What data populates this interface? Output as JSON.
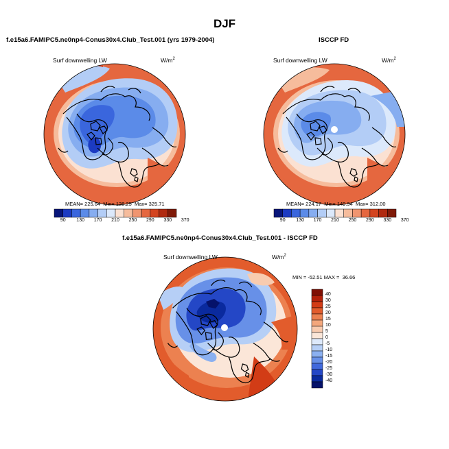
{
  "page": {
    "title": "DJF"
  },
  "panels": [
    {
      "title": "f.e15a6.FAMIPC5.ne0np4-Conus30x4.Club_Test.001 (yrs 1979-2004)",
      "field_label": "Surf downwelling LW",
      "units": "W/m",
      "units_exp": "2",
      "stats": {
        "mean_label": "MEAN=",
        "mean": "225.64",
        "min_label": "Min=",
        "min": "128.25",
        "max_label": "Max=",
        "max": "325.71"
      },
      "colorbar": {
        "ticks": [
          "90",
          "130",
          "170",
          "210",
          "250",
          "290",
          "330",
          "370"
        ]
      }
    },
    {
      "title": "ISCCP FD",
      "field_label": "Surf downwelling LW",
      "units": "W/m",
      "units_exp": "2",
      "stats": {
        "mean_label": "MEAN=",
        "mean": "224.17",
        "min_label": "Min=",
        "min": "149.94",
        "max_label": "Max=",
        "max": "312.00"
      },
      "colorbar": {
        "ticks": [
          "90",
          "130",
          "170",
          "210",
          "250",
          "290",
          "330",
          "370"
        ]
      }
    },
    {
      "title": "f.e15a6.FAMIPC5.ne0np4-Conus30x4.Club_Test.001 - ISCCP FD",
      "field_label": "Surf downwelling LW",
      "units": "W/m",
      "units_exp": "2",
      "stats": {
        "min_label": "MIN =",
        "min": "-52.51",
        "max_label": "MAX =",
        "max": "36.66"
      },
      "colorbar": {
        "ticks": [
          "40",
          "30",
          "25",
          "20",
          "15",
          "10",
          "5",
          "0",
          "-5",
          "-10",
          "-15",
          "-20",
          "-25",
          "-30",
          "-40"
        ]
      }
    }
  ],
  "palettes": {
    "field": [
      "#08167a",
      "#1c3bc2",
      "#3a66dd",
      "#5b8be8",
      "#86adf0",
      "#b3cdf6",
      "#dce9fb",
      "#fbe1d2",
      "#f6bc9c",
      "#f09570",
      "#e5673f",
      "#d3441f",
      "#b02a10",
      "#7f1a08"
    ],
    "diff": [
      "#7f0f04",
      "#b3200a",
      "#d23c16",
      "#e25c2c",
      "#ec8150",
      "#f3a77c",
      "#f8cbaf",
      "#fbe6d8",
      "#dde9fb",
      "#b6cff6",
      "#8bb0f0",
      "#6790e8",
      "#4169dc",
      "#2447c6",
      "#0a2a9e",
      "#05126a"
    ]
  },
  "map_fields": {
    "panel1": {
      "ocean_warm": 300,
      "mid": 255,
      "arctic": 185,
      "core": 145,
      "siberia": 185
    },
    "panel2": {
      "ocean_warm": 295,
      "mid": 255,
      "arctic": 205,
      "core": 175,
      "siberia": 200
    },
    "panel3": {
      "outer": 15,
      "mid": 5,
      "arctic": -20,
      "core": -40,
      "atlantic": 22
    }
  }
}
